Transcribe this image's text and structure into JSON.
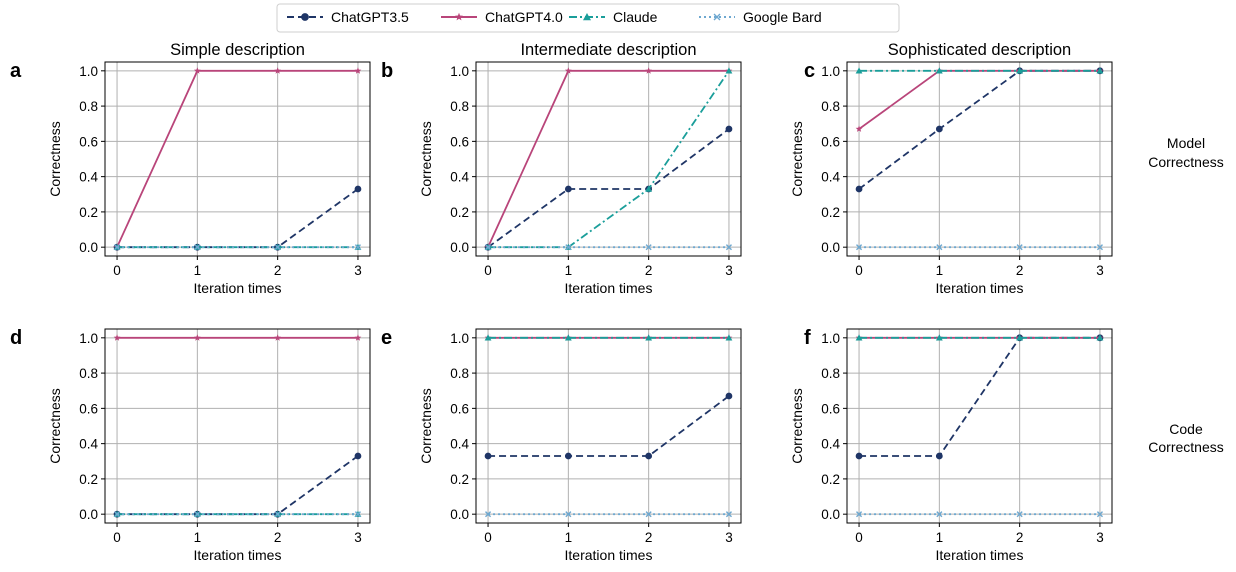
{
  "legend": {
    "items": [
      {
        "label": "ChatGPT3.5",
        "color": "#1f3566",
        "dash": "dashed",
        "marker": "circle"
      },
      {
        "label": "ChatGPT4.0",
        "color": "#b9457a",
        "dash": "solid",
        "marker": "star"
      },
      {
        "label": "Claude",
        "color": "#1a9e9a",
        "dash": "dashdot",
        "marker": "triangle"
      },
      {
        "label": "Google Bard",
        "color": "#6ea8d0",
        "dash": "dotted",
        "marker": "x"
      }
    ]
  },
  "row_labels": [
    {
      "line1": "Model",
      "line2": "Correctness"
    },
    {
      "line1": "Code",
      "line2": "Correctness"
    }
  ],
  "chart_data": [
    {
      "type": "line",
      "panel_letter": "a",
      "title": "Simple description",
      "xlabel": "Iteration times",
      "ylabel": "Correctness",
      "x": [
        0,
        1,
        2,
        3
      ],
      "ylim": [
        -0.05,
        1.05
      ],
      "yticks": [
        "0.0",
        "0.2",
        "0.4",
        "0.6",
        "0.8",
        "1.0"
      ],
      "xticks": [
        "0",
        "1",
        "2",
        "3"
      ],
      "grid": true,
      "series": [
        {
          "name": "ChatGPT3.5",
          "values": [
            0,
            0,
            0,
            0.33
          ]
        },
        {
          "name": "ChatGPT4.0",
          "values": [
            0,
            1,
            1,
            1
          ]
        },
        {
          "name": "Claude",
          "values": [
            0,
            0,
            0,
            0
          ]
        },
        {
          "name": "Google Bard",
          "values": [
            0,
            0,
            0,
            0
          ]
        }
      ]
    },
    {
      "type": "line",
      "panel_letter": "b",
      "title": "Intermediate description",
      "xlabel": "Iteration times",
      "ylabel": "Correctness",
      "x": [
        0,
        1,
        2,
        3
      ],
      "ylim": [
        -0.05,
        1.05
      ],
      "yticks": [
        "0.0",
        "0.2",
        "0.4",
        "0.6",
        "0.8",
        "1.0"
      ],
      "xticks": [
        "0",
        "1",
        "2",
        "3"
      ],
      "grid": true,
      "series": [
        {
          "name": "ChatGPT3.5",
          "values": [
            0,
            0.33,
            0.33,
            0.67
          ]
        },
        {
          "name": "ChatGPT4.0",
          "values": [
            0,
            1,
            1,
            1
          ]
        },
        {
          "name": "Claude",
          "values": [
            0,
            0,
            0.33,
            1
          ]
        },
        {
          "name": "Google Bard",
          "values": [
            0,
            0,
            0,
            0
          ]
        }
      ]
    },
    {
      "type": "line",
      "panel_letter": "c",
      "title": "Sophisticated description",
      "xlabel": "Iteration times",
      "ylabel": "Correctness",
      "x": [
        0,
        1,
        2,
        3
      ],
      "ylim": [
        -0.05,
        1.05
      ],
      "yticks": [
        "0.0",
        "0.2",
        "0.4",
        "0.6",
        "0.8",
        "1.0"
      ],
      "xticks": [
        "0",
        "1",
        "2",
        "3"
      ],
      "grid": true,
      "series": [
        {
          "name": "ChatGPT3.5",
          "values": [
            0.33,
            0.67,
            1,
            1
          ]
        },
        {
          "name": "ChatGPT4.0",
          "values": [
            0.67,
            1,
            1,
            1
          ]
        },
        {
          "name": "Claude",
          "values": [
            1,
            1,
            1,
            1
          ]
        },
        {
          "name": "Google Bard",
          "values": [
            0,
            0,
            0,
            0
          ]
        }
      ]
    },
    {
      "type": "line",
      "panel_letter": "d",
      "title": "",
      "xlabel": "Iteration times",
      "ylabel": "Correctness",
      "x": [
        0,
        1,
        2,
        3
      ],
      "ylim": [
        -0.05,
        1.05
      ],
      "yticks": [
        "0.0",
        "0.2",
        "0.4",
        "0.6",
        "0.8",
        "1.0"
      ],
      "xticks": [
        "0",
        "1",
        "2",
        "3"
      ],
      "grid": true,
      "series": [
        {
          "name": "ChatGPT3.5",
          "values": [
            0,
            0,
            0,
            0.33
          ]
        },
        {
          "name": "ChatGPT4.0",
          "values": [
            1,
            1,
            1,
            1
          ]
        },
        {
          "name": "Claude",
          "values": [
            0,
            0,
            0,
            0
          ]
        },
        {
          "name": "Google Bard",
          "values": [
            0,
            0,
            0,
            0
          ]
        }
      ]
    },
    {
      "type": "line",
      "panel_letter": "e",
      "title": "",
      "xlabel": "Iteration times",
      "ylabel": "Correctness",
      "x": [
        0,
        1,
        2,
        3
      ],
      "ylim": [
        -0.05,
        1.05
      ],
      "yticks": [
        "0.0",
        "0.2",
        "0.4",
        "0.6",
        "0.8",
        "1.0"
      ],
      "xticks": [
        "0",
        "1",
        "2",
        "3"
      ],
      "grid": true,
      "series": [
        {
          "name": "ChatGPT3.5",
          "values": [
            0.33,
            0.33,
            0.33,
            0.67
          ]
        },
        {
          "name": "ChatGPT4.0",
          "values": [
            1,
            1,
            1,
            1
          ]
        },
        {
          "name": "Claude",
          "values": [
            1,
            1,
            1,
            1
          ]
        },
        {
          "name": "Google Bard",
          "values": [
            0,
            0,
            0,
            0
          ]
        }
      ]
    },
    {
      "type": "line",
      "panel_letter": "f",
      "title": "",
      "xlabel": "Iteration times",
      "ylabel": "Correctness",
      "x": [
        0,
        1,
        2,
        3
      ],
      "ylim": [
        -0.05,
        1.05
      ],
      "yticks": [
        "0.0",
        "0.2",
        "0.4",
        "0.6",
        "0.8",
        "1.0"
      ],
      "xticks": [
        "0",
        "1",
        "2",
        "3"
      ],
      "grid": true,
      "series": [
        {
          "name": "ChatGPT3.5",
          "values": [
            0.33,
            0.33,
            1,
            1
          ]
        },
        {
          "name": "ChatGPT4.0",
          "values": [
            1,
            1,
            1,
            1
          ]
        },
        {
          "name": "Claude",
          "values": [
            1,
            1,
            1,
            1
          ]
        },
        {
          "name": "Google Bard",
          "values": [
            0,
            0,
            0,
            0
          ]
        }
      ]
    }
  ]
}
